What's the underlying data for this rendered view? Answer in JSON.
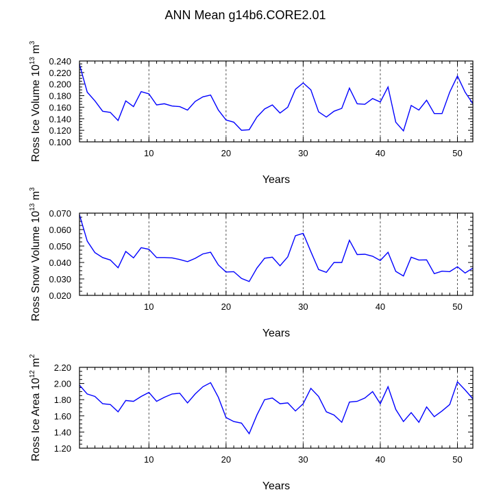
{
  "title": "ANN Mean g14b6.CORE2.01",
  "chart_data": [
    {
      "type": "line",
      "ylabel_prefix": "Ross Ice Volume 10",
      "ylabel_exp": "13",
      "ylabel_unit": " m",
      "ylabel_unit_exp": "3",
      "xlabel": "Years",
      "xlim": [
        1,
        52
      ],
      "ylim": [
        0.1,
        0.24
      ],
      "yticks": [
        0.1,
        0.12,
        0.14,
        0.16,
        0.18,
        0.2,
        0.22,
        0.24
      ],
      "yticklabels": [
        "0.100",
        "0.120",
        "0.140",
        "0.160",
        "0.180",
        "0.200",
        "0.220",
        "0.240"
      ],
      "xticks": [
        10,
        20,
        30,
        40,
        50
      ],
      "xticklabels": [
        "10",
        "20",
        "30",
        "40",
        "50"
      ],
      "series_color": "#0000ff",
      "x": [
        1,
        2,
        3,
        4,
        5,
        6,
        7,
        8,
        9,
        10,
        11,
        12,
        13,
        14,
        15,
        16,
        17,
        18,
        19,
        20,
        21,
        22,
        23,
        24,
        25,
        26,
        27,
        28,
        29,
        30,
        31,
        32,
        33,
        34,
        35,
        36,
        37,
        38,
        39,
        40,
        41,
        42,
        43,
        44,
        45,
        46,
        47,
        48,
        49,
        50,
        51,
        52
      ],
      "y": [
        0.234,
        0.186,
        0.171,
        0.153,
        0.151,
        0.137,
        0.171,
        0.161,
        0.187,
        0.183,
        0.164,
        0.166,
        0.162,
        0.161,
        0.155,
        0.17,
        0.178,
        0.181,
        0.155,
        0.138,
        0.134,
        0.12,
        0.121,
        0.143,
        0.157,
        0.164,
        0.15,
        0.16,
        0.191,
        0.202,
        0.19,
        0.152,
        0.143,
        0.153,
        0.158,
        0.193,
        0.166,
        0.165,
        0.175,
        0.169,
        0.195,
        0.134,
        0.119,
        0.163,
        0.155,
        0.172,
        0.149,
        0.149,
        0.186,
        0.214,
        0.186,
        0.166
      ]
    },
    {
      "type": "line",
      "ylabel_prefix": "Ross Snow Volume 10",
      "ylabel_exp": "13",
      "ylabel_unit": " m",
      "ylabel_unit_exp": "3",
      "xlabel": "Years",
      "xlim": [
        1,
        52
      ],
      "ylim": [
        0.02,
        0.07
      ],
      "yticks": [
        0.02,
        0.03,
        0.04,
        0.05,
        0.06,
        0.07
      ],
      "yticklabels": [
        "0.020",
        "0.030",
        "0.040",
        "0.050",
        "0.060",
        "0.070"
      ],
      "xticks": [
        10,
        20,
        30,
        40,
        50
      ],
      "xticklabels": [
        "10",
        "20",
        "30",
        "40",
        "50"
      ],
      "series_color": "#0000ff",
      "x": [
        1,
        2,
        3,
        4,
        5,
        6,
        7,
        8,
        9,
        10,
        11,
        12,
        13,
        14,
        15,
        16,
        17,
        18,
        19,
        20,
        21,
        22,
        23,
        24,
        25,
        26,
        27,
        28,
        29,
        30,
        31,
        32,
        33,
        34,
        35,
        36,
        37,
        38,
        39,
        40,
        41,
        42,
        43,
        44,
        45,
        46,
        47,
        48,
        49,
        50,
        51,
        52
      ],
      "y": [
        0.069,
        0.053,
        0.046,
        0.043,
        0.0415,
        0.0368,
        0.0467,
        0.0428,
        0.049,
        0.048,
        0.043,
        0.043,
        0.0428,
        0.0418,
        0.0405,
        0.0425,
        0.0452,
        0.0462,
        0.0385,
        0.0342,
        0.0344,
        0.0303,
        0.0284,
        0.0366,
        0.0426,
        0.0432,
        0.038,
        0.0434,
        0.0563,
        0.0577,
        0.0466,
        0.0357,
        0.034,
        0.04,
        0.04,
        0.0535,
        0.0448,
        0.045,
        0.0438,
        0.0412,
        0.0462,
        0.0346,
        0.0318,
        0.0432,
        0.0415,
        0.0416,
        0.0332,
        0.0347,
        0.0344,
        0.0374,
        0.0336,
        0.0366
      ]
    },
    {
      "type": "line",
      "ylabel_prefix": "Ross Ice Area 10",
      "ylabel_exp": "12",
      "ylabel_unit": " m",
      "ylabel_unit_exp": "2",
      "xlabel": "Years",
      "xlim": [
        1,
        52
      ],
      "ylim": [
        1.2,
        2.2
      ],
      "yticks": [
        1.2,
        1.4,
        1.6,
        1.8,
        2.0,
        2.2
      ],
      "yticklabels": [
        "1.20",
        "1.40",
        "1.60",
        "1.80",
        "2.00",
        "2.20"
      ],
      "xticks": [
        10,
        20,
        30,
        40,
        50
      ],
      "xticklabels": [
        "10",
        "20",
        "30",
        "40",
        "50"
      ],
      "series_color": "#0000ff",
      "x": [
        1,
        2,
        3,
        4,
        5,
        6,
        7,
        8,
        9,
        10,
        11,
        12,
        13,
        14,
        15,
        16,
        17,
        18,
        19,
        20,
        21,
        22,
        23,
        24,
        25,
        26,
        27,
        28,
        29,
        30,
        31,
        32,
        33,
        34,
        35,
        36,
        37,
        38,
        39,
        40,
        41,
        42,
        43,
        44,
        45,
        46,
        47,
        48,
        49,
        50,
        51,
        52
      ],
      "y": [
        1.98,
        1.87,
        1.84,
        1.75,
        1.74,
        1.65,
        1.79,
        1.78,
        1.84,
        1.89,
        1.78,
        1.83,
        1.87,
        1.88,
        1.76,
        1.87,
        1.96,
        2.01,
        1.83,
        1.58,
        1.53,
        1.51,
        1.38,
        1.61,
        1.8,
        1.82,
        1.75,
        1.76,
        1.66,
        1.75,
        1.94,
        1.84,
        1.65,
        1.61,
        1.52,
        1.77,
        1.78,
        1.82,
        1.9,
        1.75,
        1.96,
        1.68,
        1.53,
        1.64,
        1.52,
        1.71,
        1.59,
        1.66,
        1.74,
        2.02,
        1.92,
        1.81
      ]
    }
  ]
}
